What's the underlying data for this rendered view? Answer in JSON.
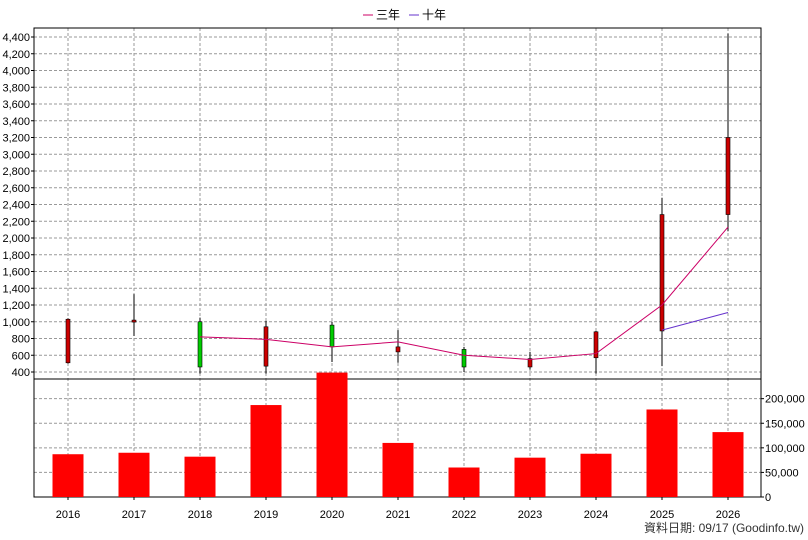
{
  "chart_data": {
    "type": "candlestick+bar",
    "legend": [
      {
        "name": "三年",
        "color": "#cc0066"
      },
      {
        "name": "十年",
        "color": "#6633cc"
      }
    ],
    "categories": [
      "2016",
      "2017",
      "2018",
      "2019",
      "2020",
      "2021",
      "2022",
      "2023",
      "2024",
      "2025",
      "2026"
    ],
    "price_axis": {
      "ylim": [
        400,
        4400
      ],
      "ticks": [
        400,
        600,
        800,
        1000,
        1200,
        1400,
        1600,
        1800,
        2000,
        2200,
        2400,
        2600,
        2800,
        3000,
        3200,
        3400,
        3600,
        3800,
        4000,
        4200,
        4400
      ],
      "tick_labels": [
        "400",
        "600",
        "800",
        "1,000",
        "1,200",
        "1,400",
        "1,600",
        "1,800",
        "2,000",
        "2,200",
        "2,400",
        "2,600",
        "2,800",
        "3,000",
        "3,200",
        "3,400",
        "3,600",
        "3,800",
        "4,000",
        "4,200",
        "4,400"
      ]
    },
    "candles": [
      {
        "year": "2016",
        "open": 510,
        "close": 1030,
        "high": 1040,
        "low": 500,
        "color": "#cc0000"
      },
      {
        "year": "2017",
        "open": 1000,
        "close": 1020,
        "high": 1330,
        "low": 830,
        "color": "#cc0000"
      },
      {
        "year": "2018",
        "open": 1000,
        "close": 460,
        "high": 1050,
        "low": 380,
        "color": "#00cc00"
      },
      {
        "year": "2019",
        "open": 470,
        "close": 940,
        "high": 1010,
        "low": 380,
        "color": "#cc0000"
      },
      {
        "year": "2020",
        "open": 960,
        "close": 700,
        "high": 1000,
        "low": 520,
        "color": "#00cc00"
      },
      {
        "year": "2021",
        "open": 640,
        "close": 700,
        "high": 900,
        "low": 510,
        "color": "#cc0000"
      },
      {
        "year": "2022",
        "open": 670,
        "close": 460,
        "high": 700,
        "low": 400,
        "color": "#00cc00"
      },
      {
        "year": "2023",
        "open": 460,
        "close": 560,
        "high": 640,
        "low": 430,
        "color": "#cc0000"
      },
      {
        "year": "2024",
        "open": 570,
        "close": 880,
        "high": 890,
        "low": 380,
        "color": "#cc0000"
      },
      {
        "year": "2025",
        "open": 890,
        "close": 2280,
        "high": 2480,
        "low": 470,
        "color": "#cc0000"
      },
      {
        "year": "2026",
        "open": 2280,
        "close": 3200,
        "high": 4440,
        "low": 2080,
        "color": "#cc0000"
      }
    ],
    "lines": [
      {
        "name": "三年",
        "color": "#cc0066",
        "points": [
          [
            "2018",
            820
          ],
          [
            "2019",
            790
          ],
          [
            "2020",
            700
          ],
          [
            "2021",
            760
          ],
          [
            "2022",
            600
          ],
          [
            "2023",
            550
          ],
          [
            "2024",
            620
          ],
          [
            "2025",
            1200
          ],
          [
            "2026",
            2130
          ]
        ]
      },
      {
        "name": "十年",
        "color": "#6633cc",
        "points": [
          [
            "2025",
            900
          ],
          [
            "2026",
            1110
          ]
        ]
      }
    ],
    "volume_axis": {
      "ylim": [
        0,
        240000
      ],
      "ticks": [
        0,
        50000,
        100000,
        150000,
        200000
      ],
      "tick_labels": [
        "0",
        "50,000",
        "100,000",
        "150,000",
        "200,000"
      ]
    },
    "volume_bar_color": "#ff0000",
    "volumes": [
      87000,
      90000,
      82000,
      187000,
      253000,
      110000,
      60000,
      80000,
      88000,
      178000,
      132000
    ],
    "grid": true
  },
  "footer": {
    "text": "資料日期: 09/17  (Goodinfo.tw)"
  }
}
